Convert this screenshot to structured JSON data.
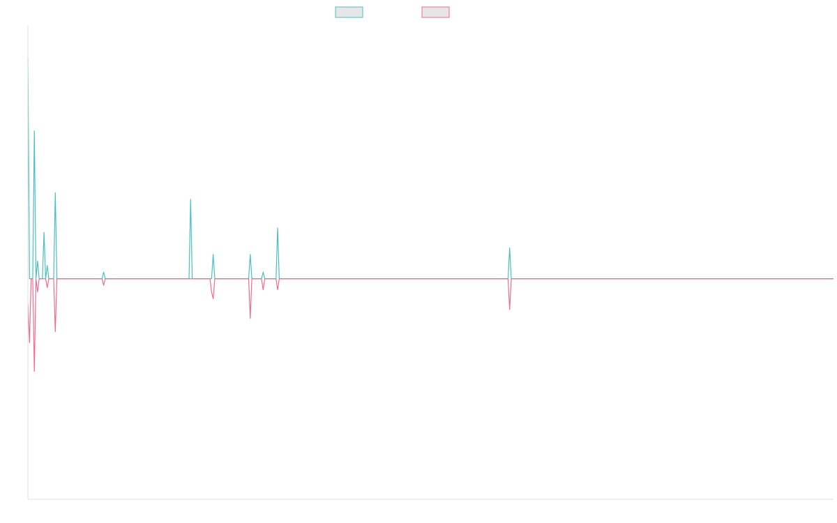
{
  "chart_data": {
    "type": "line",
    "title": "",
    "xlabel": "",
    "ylabel": "",
    "grid": false,
    "legend": "top-center",
    "x_count": 501,
    "ylim": [
      -1.0,
      1.15
    ],
    "series": [
      {
        "color": "#4bbfbf",
        "fill": "#e6e6e6",
        "points": [
          [
            0,
            1.0
          ],
          [
            1,
            0.0
          ],
          [
            2,
            0.0
          ],
          [
            3,
            0.0
          ],
          [
            4,
            0.67
          ],
          [
            5,
            0.0
          ],
          [
            6,
            0.08
          ],
          [
            7,
            0.0
          ],
          [
            8,
            0.0
          ],
          [
            9,
            0.0
          ],
          [
            10,
            0.21
          ],
          [
            11,
            0.0
          ],
          [
            12,
            0.06
          ],
          [
            13,
            0.0
          ],
          [
            14,
            0.0
          ],
          [
            15,
            0.0
          ],
          [
            16,
            0.0
          ],
          [
            17,
            0.39
          ],
          [
            18,
            0.0
          ],
          [
            46,
            0.0
          ],
          [
            47,
            0.03
          ],
          [
            48,
            0.0
          ],
          [
            100,
            0.0
          ],
          [
            101,
            0.36
          ],
          [
            102,
            0.0
          ],
          [
            113,
            0.0
          ],
          [
            114,
            0.0
          ],
          [
            115,
            0.11
          ],
          [
            116,
            0.0
          ],
          [
            137,
            0.0
          ],
          [
            138,
            0.11
          ],
          [
            139,
            0.0
          ],
          [
            145,
            0.0
          ],
          [
            146,
            0.03
          ],
          [
            147,
            0.0
          ],
          [
            152,
            0.0
          ],
          [
            153,
            0.0
          ],
          [
            154,
            0.0
          ],
          [
            155,
            0.23
          ],
          [
            156,
            0.0
          ],
          [
            298,
            0.0
          ],
          [
            299,
            0.14
          ],
          [
            300,
            0.0
          ],
          [
            500,
            0.0
          ]
        ]
      },
      {
        "color": "#ef6b8f",
        "fill": "#e6e6e6",
        "points": [
          [
            0,
            -0.11
          ],
          [
            1,
            -0.29
          ],
          [
            2,
            0.0
          ],
          [
            3,
            0.0
          ],
          [
            4,
            -0.42
          ],
          [
            5,
            0.0
          ],
          [
            6,
            -0.06
          ],
          [
            7,
            0.0
          ],
          [
            8,
            0.0
          ],
          [
            9,
            0.0
          ],
          [
            10,
            0.0
          ],
          [
            11,
            0.0
          ],
          [
            12,
            -0.04
          ],
          [
            13,
            0.0
          ],
          [
            14,
            0.0
          ],
          [
            15,
            0.0
          ],
          [
            16,
            0.0
          ],
          [
            17,
            -0.24
          ],
          [
            18,
            0.0
          ],
          [
            46,
            0.0
          ],
          [
            47,
            -0.03
          ],
          [
            48,
            0.0
          ],
          [
            100,
            0.0
          ],
          [
            101,
            0.0
          ],
          [
            102,
            0.0
          ],
          [
            113,
            0.0
          ],
          [
            114,
            -0.06
          ],
          [
            115,
            -0.09
          ],
          [
            116,
            0.0
          ],
          [
            137,
            0.0
          ],
          [
            138,
            -0.18
          ],
          [
            139,
            0.0
          ],
          [
            145,
            0.0
          ],
          [
            146,
            -0.05
          ],
          [
            147,
            0.0
          ],
          [
            152,
            0.0
          ],
          [
            153,
            0.0
          ],
          [
            154,
            0.0
          ],
          [
            155,
            -0.05
          ],
          [
            156,
            0.0
          ],
          [
            298,
            0.0
          ],
          [
            299,
            -0.14
          ],
          [
            300,
            0.0
          ],
          [
            500,
            0.0
          ]
        ]
      }
    ]
  }
}
